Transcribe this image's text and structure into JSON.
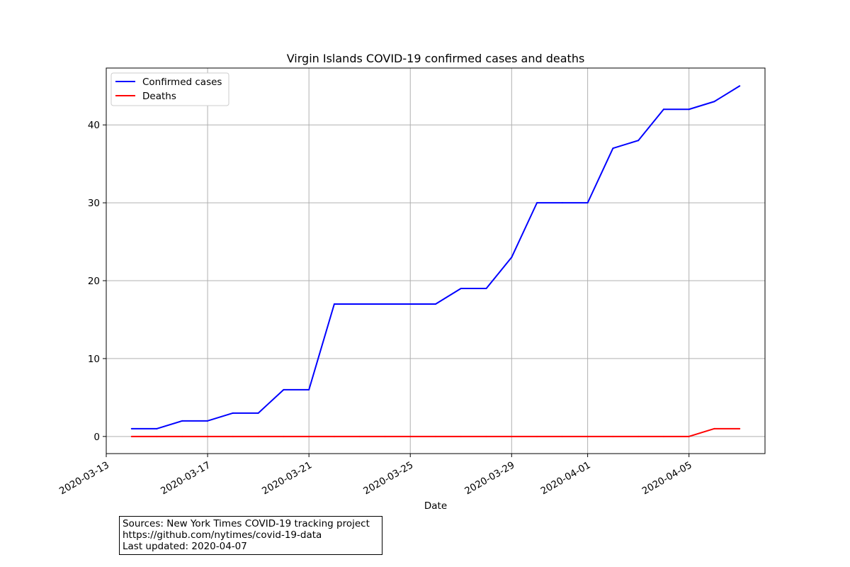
{
  "chart_data": {
    "type": "line",
    "title": "Virgin Islands COVID-19 confirmed cases and deaths",
    "xlabel": "Date",
    "ylabel": "",
    "x_start": "2020-03-13",
    "x_end": "2020-04-08",
    "xlim": [
      "2020-03-13",
      "2020-04-08"
    ],
    "ylim": [
      -2.2,
      47.3
    ],
    "grid": true,
    "legend_position": "top-left",
    "x_ticks": [
      "2020-03-13",
      "2020-03-17",
      "2020-03-21",
      "2020-03-25",
      "2020-03-29",
      "2020-04-01",
      "2020-04-05"
    ],
    "y_ticks": [
      0,
      10,
      20,
      30,
      40
    ],
    "x": [
      "2020-03-14",
      "2020-03-15",
      "2020-03-16",
      "2020-03-17",
      "2020-03-18",
      "2020-03-19",
      "2020-03-20",
      "2020-03-21",
      "2020-03-22",
      "2020-03-23",
      "2020-03-24",
      "2020-03-25",
      "2020-03-26",
      "2020-03-27",
      "2020-03-28",
      "2020-03-29",
      "2020-03-30",
      "2020-03-31",
      "2020-04-01",
      "2020-04-02",
      "2020-04-03",
      "2020-04-04",
      "2020-04-05",
      "2020-04-06",
      "2020-04-07"
    ],
    "series": [
      {
        "name": "Confirmed cases",
        "color": "#0000ff",
        "values": [
          1,
          1,
          2,
          2,
          3,
          3,
          6,
          6,
          17,
          17,
          17,
          17,
          17,
          19,
          19,
          23,
          30,
          30,
          30,
          37,
          38,
          42,
          42,
          43,
          45
        ]
      },
      {
        "name": "Deaths",
        "color": "#ff0000",
        "values": [
          0,
          0,
          0,
          0,
          0,
          0,
          0,
          0,
          0,
          0,
          0,
          0,
          0,
          0,
          0,
          0,
          0,
          0,
          0,
          0,
          0,
          0,
          0,
          1,
          1
        ]
      }
    ]
  },
  "sources": {
    "line1": "Sources: New York Times COVID-19 tracking project",
    "line2": "https://github.com/nytimes/covid-19-data",
    "line3": "Last updated: 2020-04-07"
  }
}
